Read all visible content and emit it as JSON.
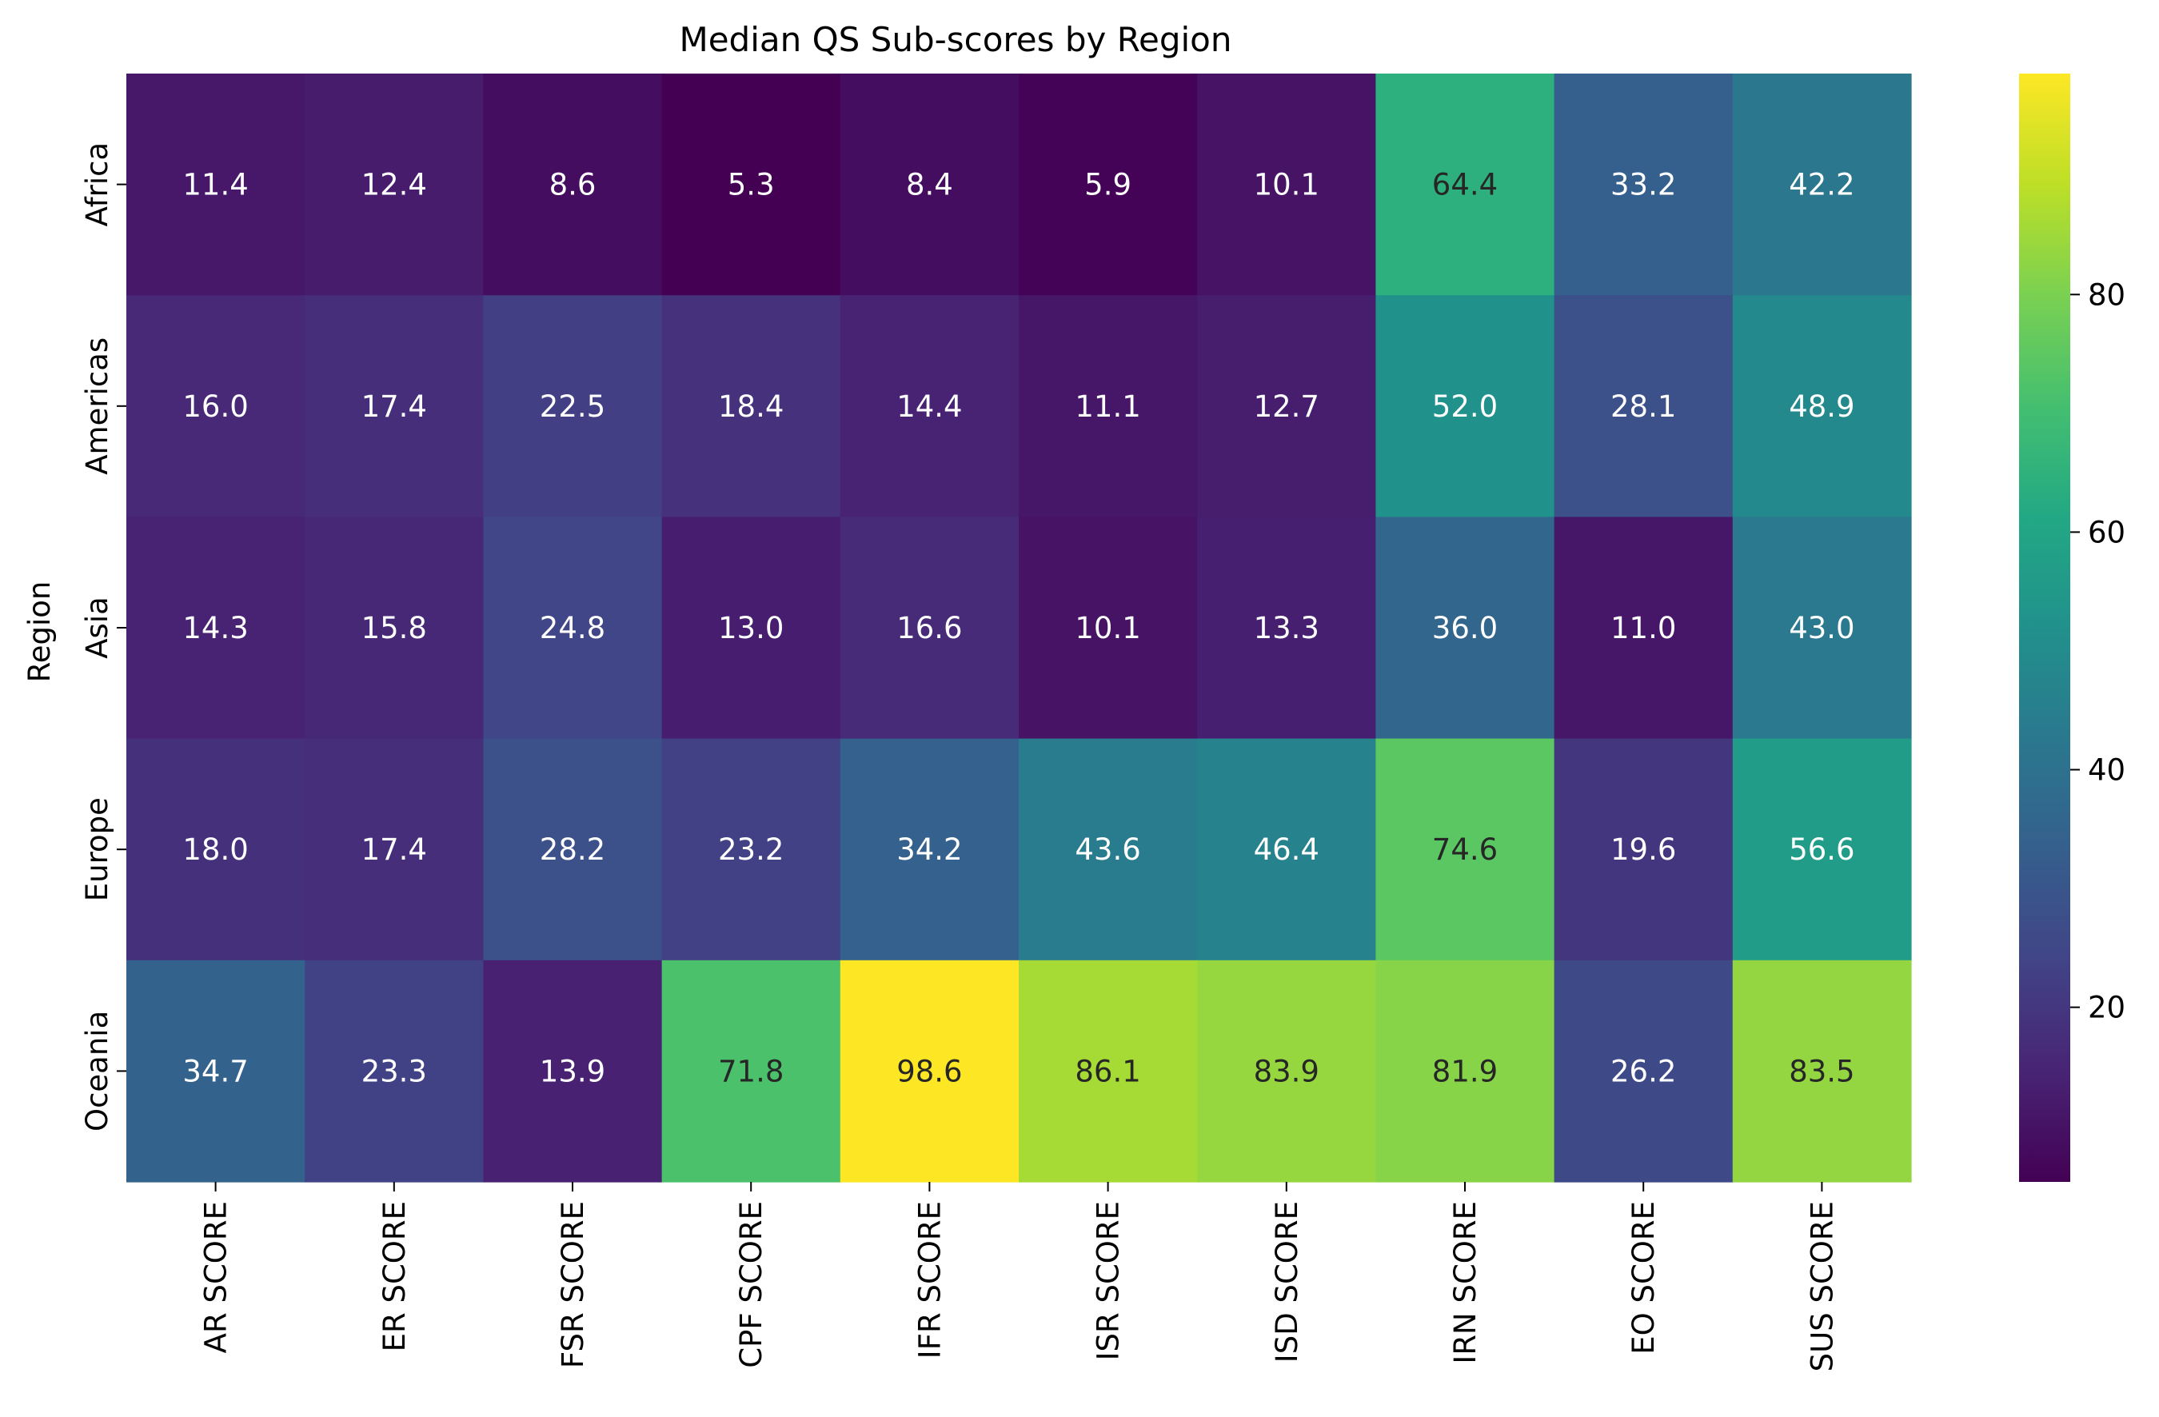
{
  "chart_data": {
    "type": "heatmap",
    "title": "Median QS Sub-scores by Region",
    "xlabel": "",
    "ylabel": "Region",
    "x_categories": [
      "AR SCORE",
      "ER SCORE",
      "FSR SCORE",
      "CPF SCORE",
      "IFR SCORE",
      "ISR SCORE",
      "ISD SCORE",
      "IRN SCORE",
      "EO SCORE",
      "SUS SCORE"
    ],
    "y_categories": [
      "Africa",
      "Americas",
      "Asia",
      "Europe",
      "Oceania"
    ],
    "values": [
      [
        11.4,
        12.4,
        8.6,
        5.3,
        8.4,
        5.9,
        10.1,
        64.4,
        33.2,
        42.2
      ],
      [
        16.0,
        17.4,
        22.5,
        18.4,
        14.4,
        11.1,
        12.7,
        52.0,
        28.1,
        48.9
      ],
      [
        14.3,
        15.8,
        24.8,
        13.0,
        16.6,
        10.1,
        13.3,
        36.0,
        11.0,
        43.0
      ],
      [
        18.0,
        17.4,
        28.2,
        23.2,
        34.2,
        43.6,
        46.4,
        74.6,
        19.6,
        56.6
      ],
      [
        34.7,
        23.3,
        13.9,
        71.8,
        98.6,
        86.1,
        83.9,
        81.9,
        26.2,
        83.5
      ]
    ],
    "value_format": "one decimal",
    "colormap": "viridis",
    "color_range": [
      5.3,
      98.6
    ],
    "colorbar_ticks": [
      20,
      40,
      60,
      80
    ]
  }
}
